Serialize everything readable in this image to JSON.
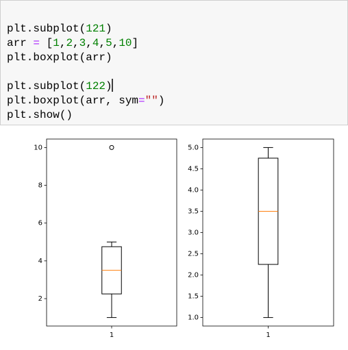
{
  "code": {
    "lines": [
      [
        {
          "text": "plt.subplot(",
          "color": "#000000"
        },
        {
          "text": "121",
          "color": "#008000"
        },
        {
          "text": ")",
          "color": "#000000"
        }
      ],
      [
        {
          "text": "arr ",
          "color": "#000000"
        },
        {
          "text": "=",
          "color": "#aa22ff"
        },
        {
          "text": " [",
          "color": "#000000"
        },
        {
          "text": "1",
          "color": "#008000"
        },
        {
          "text": ",",
          "color": "#000000"
        },
        {
          "text": "2",
          "color": "#008000"
        },
        {
          "text": ",",
          "color": "#000000"
        },
        {
          "text": "3",
          "color": "#008000"
        },
        {
          "text": ",",
          "color": "#000000"
        },
        {
          "text": "4",
          "color": "#008000"
        },
        {
          "text": ",",
          "color": "#000000"
        },
        {
          "text": "5",
          "color": "#008000"
        },
        {
          "text": ",",
          "color": "#000000"
        },
        {
          "text": "10",
          "color": "#008000"
        },
        {
          "text": "]",
          "color": "#000000"
        }
      ],
      [
        {
          "text": "plt.boxplot(arr)",
          "color": "#000000"
        }
      ],
      [],
      [
        {
          "text": "plt.subplot(",
          "color": "#000000"
        },
        {
          "text": "122",
          "color": "#008000"
        },
        {
          "text": ")",
          "color": "#000000"
        }
      ],
      [
        {
          "text": "plt.boxplot(arr, sym",
          "color": "#000000"
        },
        {
          "text": "=",
          "color": "#aa22ff"
        },
        {
          "text": "\"\"",
          "color": "#ba2121"
        },
        {
          "text": ")",
          "color": "#000000"
        }
      ],
      [
        {
          "text": "plt.show()",
          "color": "#000000"
        }
      ]
    ]
  },
  "chart_data": [
    {
      "type": "boxplot",
      "xticks": [
        1
      ],
      "xlim": [
        0.5,
        1.5
      ],
      "ylim": [
        0.55,
        10.45
      ],
      "yticks": [
        2,
        4,
        6,
        8,
        10
      ],
      "whislo": 1,
      "q1": 2.25,
      "med": 3.5,
      "q3": 4.75,
      "whishi": 5,
      "fliers": [
        10
      ],
      "median_color": "#ff7f0e"
    },
    {
      "type": "boxplot",
      "xticks": [
        1
      ],
      "xlim": [
        0.5,
        1.5
      ],
      "ylim": [
        0.8,
        5.2
      ],
      "yticks": [
        {
          "value": 1,
          "label": "1.0"
        },
        {
          "value": 1.5,
          "label": "1.5"
        },
        {
          "value": 2,
          "label": "2.0"
        },
        {
          "value": 2.5,
          "label": "2.5"
        },
        {
          "value": 3,
          "label": "3.0"
        },
        {
          "value": 3.5,
          "label": "3.5"
        },
        {
          "value": 4,
          "label": "4.0"
        },
        {
          "value": 4.5,
          "label": "4.5"
        },
        {
          "value": 5,
          "label": "5.0"
        }
      ],
      "whislo": 1,
      "q1": 2.25,
      "med": 3.5,
      "q3": 4.75,
      "whishi": 5,
      "median_color": "#ff7f0e"
    }
  ]
}
